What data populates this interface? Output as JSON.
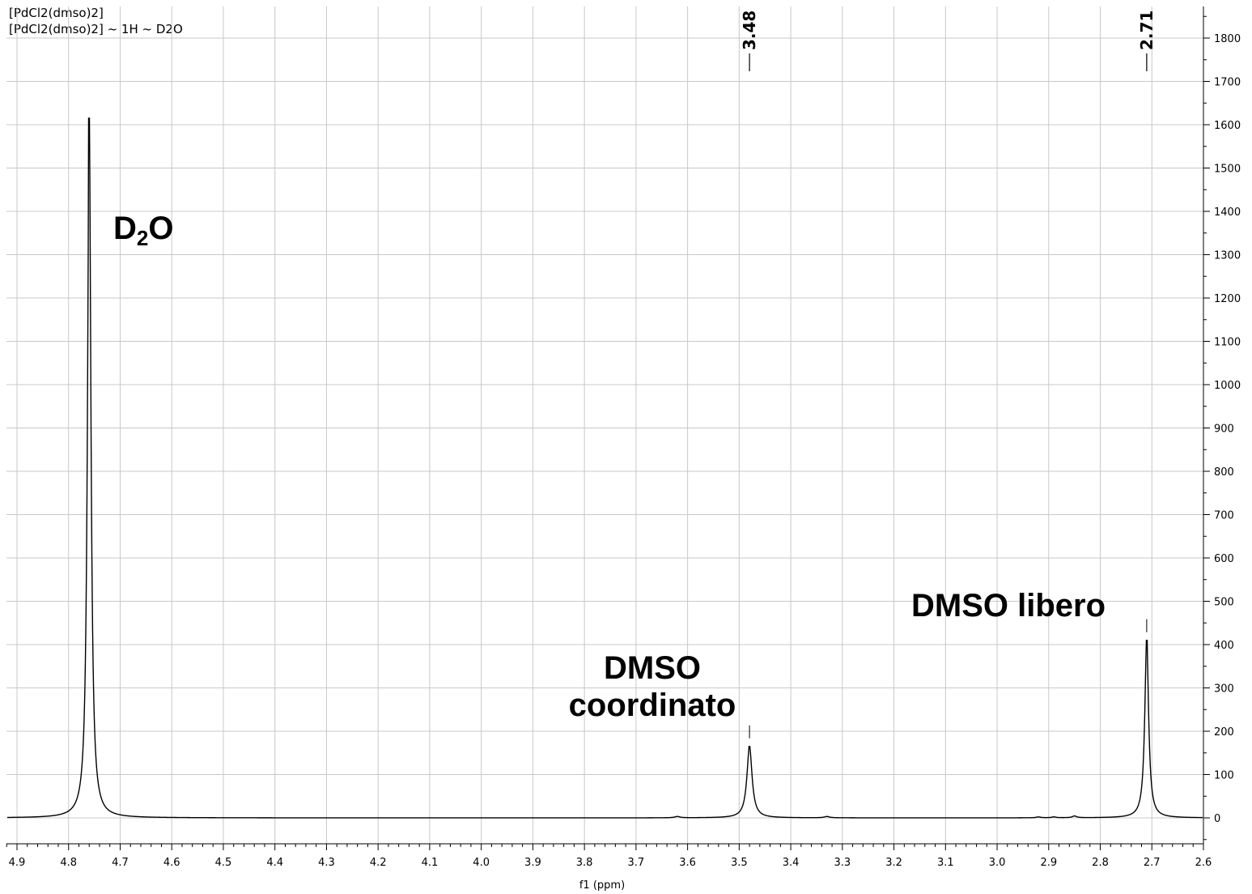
{
  "title": {
    "line1": "[PdCl2(dmso)2]",
    "line2": "[PdCl2(dmso)2] ~ 1H ~ D2O"
  },
  "chart_data": {
    "type": "line",
    "xlabel": "f1 (ppm)",
    "ylabel": "",
    "xlim": [
      4.92,
      2.6
    ],
    "ylim": [
      -60,
      1880
    ],
    "x_reversed": true,
    "grid": true,
    "x_ticks": [
      "4.9",
      "4.8",
      "4.7",
      "4.6",
      "4.5",
      "4.4",
      "4.3",
      "4.2",
      "4.1",
      "4.0",
      "3.9",
      "3.8",
      "3.7",
      "3.6",
      "3.5",
      "3.4",
      "3.3",
      "3.2",
      "3.1",
      "3.0",
      "2.9",
      "2.8",
      "2.7",
      "2.6"
    ],
    "y_ticks": [
      "0",
      "100",
      "200",
      "300",
      "400",
      "500",
      "600",
      "700",
      "800",
      "900",
      "1000",
      "1100",
      "1200",
      "1300",
      "1400",
      "1500",
      "1600",
      "1700",
      "1800"
    ],
    "y_axis_side": "right",
    "peaks": [
      {
        "ppm": 4.76,
        "intensity": 1615,
        "width": 0.004
      },
      {
        "ppm": 3.48,
        "intensity": 165,
        "width": 0.006
      },
      {
        "ppm": 2.71,
        "intensity": 410,
        "width": 0.0045
      },
      {
        "ppm": 3.62,
        "intensity": 3,
        "width": 0.006
      },
      {
        "ppm": 3.33,
        "intensity": 3,
        "width": 0.006
      },
      {
        "ppm": 2.85,
        "intensity": 4,
        "width": 0.005
      },
      {
        "ppm": 2.92,
        "intensity": 2,
        "width": 0.005
      },
      {
        "ppm": 2.89,
        "intensity": 2,
        "width": 0.005
      }
    ],
    "peak_labels": [
      {
        "text": "3.48",
        "ppm": 3.48
      },
      {
        "text": "2.71",
        "ppm": 2.71
      }
    ],
    "annotations": {
      "d2o_main": "D",
      "d2o_sub": "2",
      "d2o_tail": "O",
      "dmso_coord_line1": "DMSO",
      "dmso_coord_line2": "coordinato",
      "dmso_free": "DMSO libero"
    },
    "colors": {
      "trace": "#000000",
      "grid": "#c8c8c8",
      "axis": "#000000"
    }
  }
}
